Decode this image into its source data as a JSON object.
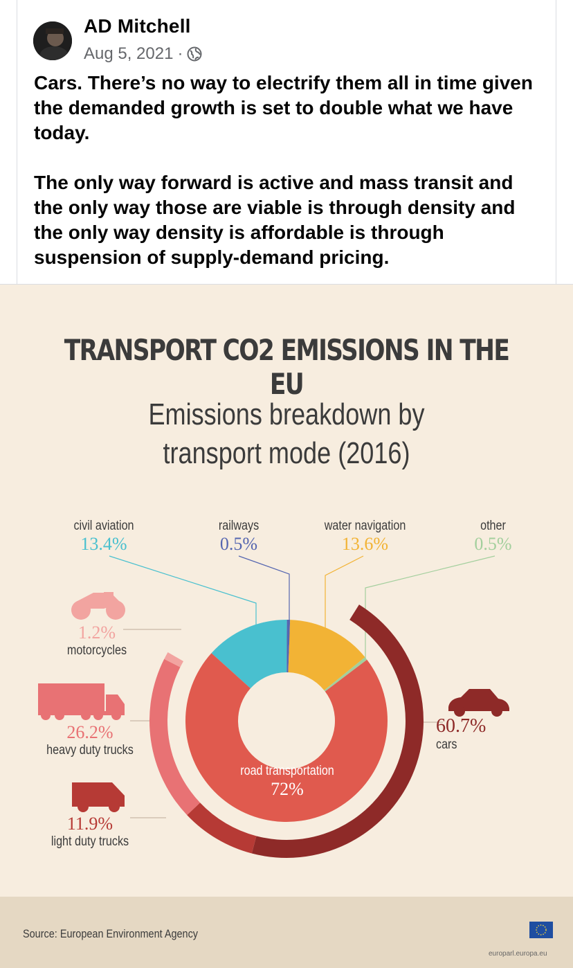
{
  "post": {
    "author": "AD Mitchell",
    "date": "Aug 5, 2021",
    "separator": "·",
    "privacy_icon": "globe-icon",
    "paragraphs": [
      "Cars. There’s no way to electrify them all in time given the demanded growth is set to double what we have today.",
      "The only way forward is active and mass transit and the only way those are viable is through density and the only way density is affordable is through suspension of supply-demand pricing."
    ]
  },
  "infographic": {
    "title": "TRANSPORT CO2 EMISSIONS IN THE EU",
    "subtitle_line1": "Emissions breakdown by",
    "subtitle_line2": "transport mode (2016)",
    "source": "Source: European Environment Agency",
    "site": "europarl.europa.eu",
    "labels": {
      "civil_aviation": {
        "name": "civil aviation",
        "pct": "13.4%"
      },
      "railways": {
        "name": "railways",
        "pct": "0.5%"
      },
      "water": {
        "name": "water navigation",
        "pct": "13.6%"
      },
      "other": {
        "name": "other",
        "pct": "0.5%"
      },
      "motorcycles": {
        "name": "motorcycles",
        "pct": "1.2%"
      },
      "heavy": {
        "name": "heavy duty trucks",
        "pct": "26.2%"
      },
      "light": {
        "name": "light duty trucks",
        "pct": "11.9%"
      },
      "cars": {
        "name": "cars",
        "pct": "60.7%"
      },
      "road": {
        "name": "road transportation",
        "pct": "72%"
      }
    },
    "colors": {
      "aviation": "#49c0cf",
      "railways": "#5566b0",
      "water": "#f2b335",
      "other": "#a3cf9d",
      "road": "#e05a4e",
      "cars": "#8e2a28",
      "heavy": "#e87274",
      "light": "#b63a35",
      "motorcycles": "#f2a4a0"
    }
  },
  "chart_data": {
    "type": "pie",
    "title": "TRANSPORT CO2 EMISSIONS IN THE EU",
    "subtitle": "Emissions breakdown by transport mode (2016)",
    "inner": {
      "categories": [
        "civil aviation",
        "railways",
        "water navigation",
        "other",
        "road transportation"
      ],
      "values": [
        13.4,
        0.5,
        13.6,
        0.5,
        72
      ]
    },
    "outer_road_breakdown": {
      "categories": [
        "cars",
        "light duty trucks",
        "heavy duty trucks",
        "motorcycles"
      ],
      "values": [
        60.7,
        11.9,
        26.2,
        1.2
      ]
    }
  }
}
